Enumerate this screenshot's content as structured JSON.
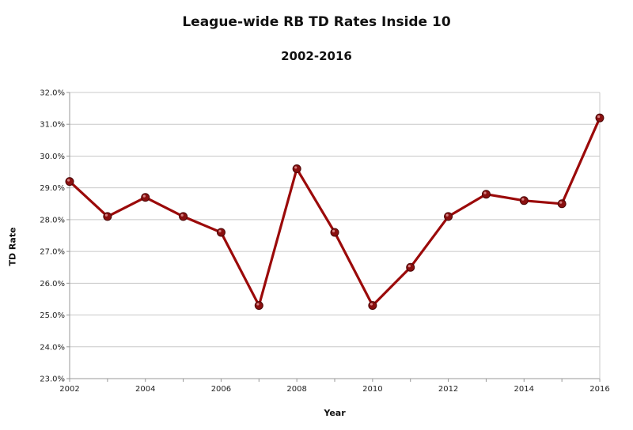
{
  "chart_data": {
    "type": "line",
    "title": "League-wide RB TD Rates Inside 10",
    "subtitle": "2002-2016",
    "xlabel": "Year",
    "ylabel": "TD Rate",
    "x": [
      2002,
      2003,
      2004,
      2005,
      2006,
      2007,
      2008,
      2009,
      2010,
      2011,
      2012,
      2013,
      2014,
      2015,
      2016
    ],
    "series": [
      {
        "values": [
          29.2,
          28.1,
          28.7,
          28.1,
          27.6,
          25.3,
          29.6,
          27.6,
          25.3,
          26.5,
          28.1,
          28.8,
          28.6,
          28.5,
          31.2
        ]
      }
    ],
    "y_ticks": [
      "23.0%",
      "24.0%",
      "25.0%",
      "26.0%",
      "27.0%",
      "28.0%",
      "29.0%",
      "30.0%",
      "31.0%",
      "32.0%"
    ],
    "x_ticks": [
      "2002",
      "2004",
      "2006",
      "2008",
      "2010",
      "2012",
      "2014",
      "2016"
    ],
    "ylim": [
      23,
      32
    ],
    "xlim": [
      2002,
      2016
    ],
    "grid": "horizontal",
    "legend": "none",
    "colors": {
      "line": "#9b0a0a",
      "marker": "#8a1010",
      "grid": "#c8c8c8",
      "axis": "#999999"
    }
  }
}
